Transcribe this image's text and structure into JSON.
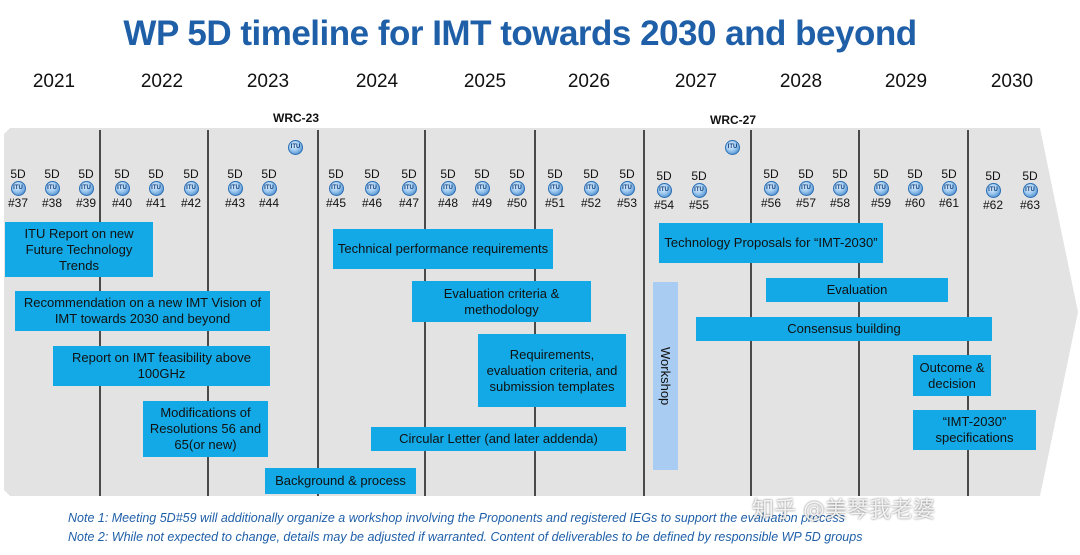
{
  "title": "WP 5D timeline for IMT towards 2030 and beyond",
  "years": [
    "2021",
    "2022",
    "2023",
    "2024",
    "2025",
    "2026",
    "2027",
    "2028",
    "2029",
    "2030"
  ],
  "wrc": [
    "WRC-23",
    "WRC-27"
  ],
  "meeting_prefix": "5D",
  "meetings": [
    "#37",
    "#38",
    "#39",
    "#40",
    "#41",
    "#42",
    "#43",
    "#44",
    "#45",
    "#46",
    "#47",
    "#48",
    "#49",
    "#50",
    "#51",
    "#52",
    "#53",
    "#54",
    "#55",
    "#56",
    "#57",
    "#58",
    "#59",
    "#60",
    "#61",
    "#62",
    "#63"
  ],
  "itu_logo_text": "ITU",
  "deliverables": [
    "ITU Report on new Future Technology Trends",
    "Recommendation on a new IMT Vision of IMT towards 2030 and beyond",
    "Report on IMT feasibility above 100GHz",
    "Modifications of Resolutions 56 and 65(or new)",
    "Background & process",
    "Technical performance requirements",
    "Evaluation criteria & methodology",
    "Requirements, evaluation criteria, and submission templates",
    "Circular Letter (and later addenda)",
    "Technology Proposals for “IMT-2030”",
    "Evaluation",
    "Consensus building",
    "Outcome & decision",
    "“IMT-2030” specifications"
  ],
  "workshop_label": "Workshop",
  "notes": [
    "Note 1: Meeting 5D#59 will additionally organize a workshop involving the Proponents and registered IEGs to support the evaluation process",
    "Note 2: While not expected to change, details may be adjusted if warranted. Content of deliverables to be defined by responsible WP 5D groups"
  ],
  "watermark": "知乎 @美琴我老婆",
  "colors": {
    "title": "#1f5fa8",
    "band": "#e3e3e3",
    "box": "#12a9e6",
    "workshop": "#a9cdf2",
    "note": "#1f5fa8"
  }
}
